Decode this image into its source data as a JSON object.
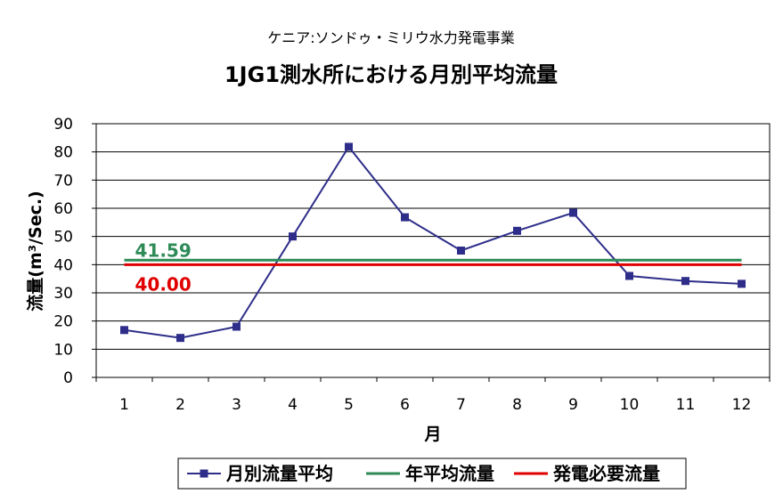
{
  "chart_data": {
    "type": "line",
    "subtitle": "ケニア:ソンドゥ・ミリウ水力発電事業",
    "title": "1JG1測水所における月別平均流量",
    "xlabel": "月",
    "ylabel": "流量(m³/Sec.)",
    "categories": [
      "1",
      "2",
      "3",
      "4",
      "5",
      "6",
      "7",
      "8",
      "9",
      "10",
      "11",
      "12"
    ],
    "ylim": [
      0,
      90
    ],
    "yticks": [
      "0",
      "10",
      "20",
      "30",
      "40",
      "50",
      "60",
      "70",
      "80",
      "90"
    ],
    "grid": true,
    "legend_position": "bottom",
    "series": [
      {
        "name": "月別流量平均",
        "type": "line-marker",
        "color": "#2e2e8a",
        "values": [
          16.8,
          14.0,
          18.0,
          50.0,
          81.8,
          56.8,
          45.0,
          52.0,
          58.4,
          36.0,
          34.2,
          33.2
        ]
      },
      {
        "name": "年平均流量",
        "type": "constant",
        "color": "#2e8b57",
        "value": 41.59,
        "label": "41.59"
      },
      {
        "name": "発電必要流量",
        "type": "constant",
        "color": "#e00000",
        "value": 40.0,
        "label": "40.00"
      }
    ]
  }
}
